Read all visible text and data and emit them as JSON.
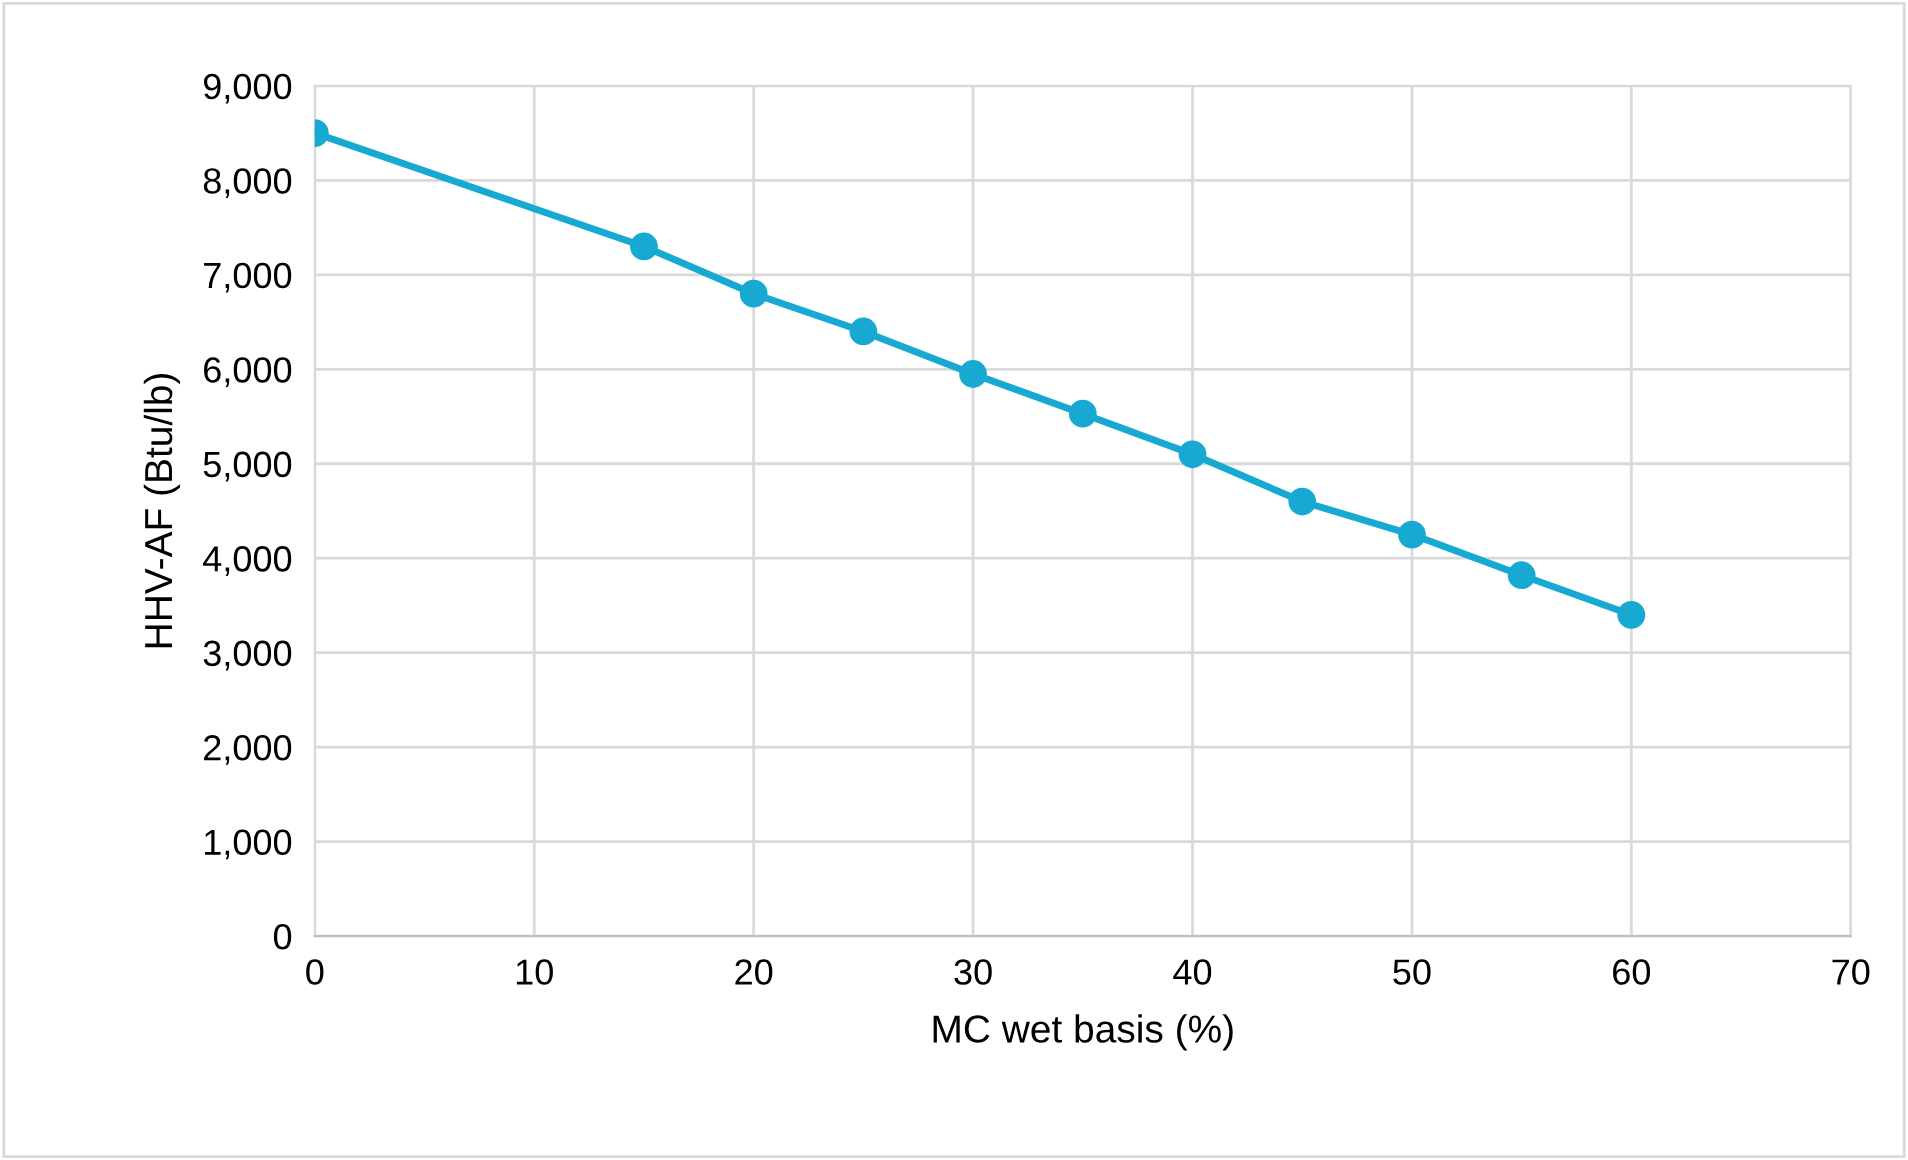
{
  "chart_data": {
    "type": "line",
    "xlabel": "MC wet basis (%)",
    "ylabel": "HHV-AF (Btu/lb)",
    "x": [
      0,
      15,
      20,
      25,
      30,
      35,
      40,
      45,
      50,
      55,
      60
    ],
    "series": [
      {
        "color": "#17a9d1",
        "values": [
          8500,
          7300,
          6800,
          6400,
          5950,
          5530,
          5100,
          4600,
          4250,
          3820,
          3400
        ]
      }
    ],
    "xlim": [
      0,
      70
    ],
    "xticks": [
      0,
      10,
      20,
      30,
      40,
      50,
      60,
      70
    ],
    "ylim": [
      0,
      9000
    ],
    "yticks": [
      {
        "value": 0,
        "label": "0"
      },
      {
        "value": 1000,
        "label": "1,000"
      },
      {
        "value": 2000,
        "label": "2,000"
      },
      {
        "value": 3000,
        "label": "3,000"
      },
      {
        "value": 4000,
        "label": "4,000"
      },
      {
        "value": 5000,
        "label": "5,000"
      },
      {
        "value": 6000,
        "label": "6,000"
      },
      {
        "value": 7000,
        "label": "7,000"
      },
      {
        "value": 8000,
        "label": "8,000"
      },
      {
        "value": 9000,
        "label": "9,000"
      }
    ],
    "grid": true,
    "marker": "circle",
    "line_style": "solid"
  }
}
